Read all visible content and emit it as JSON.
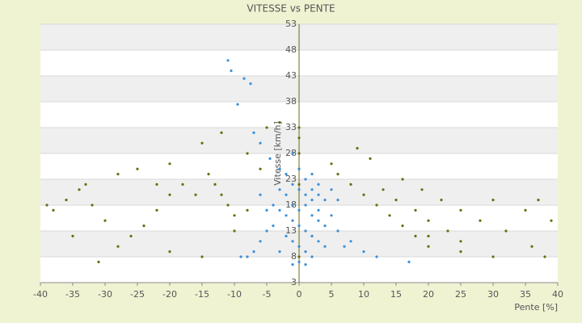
{
  "chart_data": {
    "type": "scatter",
    "title": "VITESSE vs PENTE",
    "x_label": "Pente [%]",
    "y_label": "Vitesse [km/h]",
    "xlim": [
      -40,
      40
    ],
    "xticks": [
      -40,
      -35,
      -30,
      -25,
      -20,
      -15,
      -10,
      -5,
      0,
      5,
      10,
      15,
      20,
      25,
      30,
      35,
      40
    ],
    "ylim": [
      3,
      53
    ],
    "yticks": [
      3,
      8,
      13,
      18,
      23,
      28,
      33,
      38,
      43,
      48,
      53
    ],
    "grid": true,
    "series": [
      {
        "color": "#6b6b12",
        "x": [
          -14,
          -13,
          -12,
          -11,
          -10,
          -16,
          -18,
          -20,
          -22,
          -24,
          -26,
          -28,
          -30,
          -32,
          -34,
          -36,
          -38,
          -39,
          -35,
          -31,
          -25,
          -20,
          -15,
          -12,
          -8,
          -6,
          -5,
          -3,
          -15,
          -20,
          -10,
          -8,
          -22,
          -28,
          -33,
          5,
          6,
          8,
          10,
          12,
          14,
          16,
          18,
          20,
          11,
          13,
          15,
          18,
          20,
          23,
          25,
          16,
          19,
          22,
          25,
          28,
          30,
          32,
          35,
          37,
          39,
          38,
          30,
          25,
          20,
          36,
          9,
          0,
          0,
          0,
          0,
          0,
          0
        ],
        "y": [
          24,
          22,
          20,
          18,
          16,
          20,
          22,
          20,
          17,
          14,
          12,
          10,
          15,
          18,
          21,
          19,
          17,
          18,
          12,
          7,
          25,
          26,
          30,
          32,
          28,
          25,
          33,
          34,
          8,
          9,
          13,
          17,
          22,
          24,
          22,
          26,
          24,
          22,
          20,
          18,
          16,
          14,
          12,
          10,
          27,
          21,
          19,
          17,
          15,
          13,
          11,
          23,
          21,
          19,
          17,
          15,
          19,
          13,
          17,
          19,
          15,
          8,
          8,
          9,
          12,
          10,
          29,
          31,
          28,
          25,
          22,
          33,
          8
        ]
      },
      {
        "color": "#3a8fd8",
        "x": [
          -11,
          -10.5,
          -8.5,
          -7.5,
          -9.5,
          -7,
          -6,
          -4.5,
          -3,
          -2,
          -1,
          0,
          1,
          2,
          3,
          4,
          -4,
          -3,
          -2,
          -1,
          0,
          1,
          2,
          3,
          4,
          5,
          6,
          7,
          -5,
          -6,
          -7,
          -8,
          -1,
          0,
          1,
          2,
          3,
          -2,
          -1,
          0,
          1,
          2,
          -3,
          -4,
          -5,
          6,
          5,
          -6,
          -2,
          0,
          1,
          -1,
          2,
          3,
          4,
          8,
          10,
          12,
          17,
          -9,
          0,
          1,
          -1,
          2,
          3,
          -3
        ],
        "y": [
          46,
          44,
          42.5,
          41.5,
          37.5,
          32,
          30,
          27,
          25,
          24,
          22,
          21,
          20,
          21,
          20,
          19,
          18,
          17,
          16,
          15,
          14,
          13,
          12,
          11,
          14,
          16,
          13,
          10,
          13,
          11,
          9,
          8,
          18,
          17,
          18,
          16,
          15,
          12,
          11,
          10,
          9,
          8,
          9,
          14,
          17,
          19,
          21,
          20,
          20,
          25,
          23,
          28,
          24,
          17,
          10,
          11,
          9,
          8,
          7,
          8,
          7,
          6.5,
          6.5,
          19,
          22,
          21
        ]
      }
    ]
  }
}
